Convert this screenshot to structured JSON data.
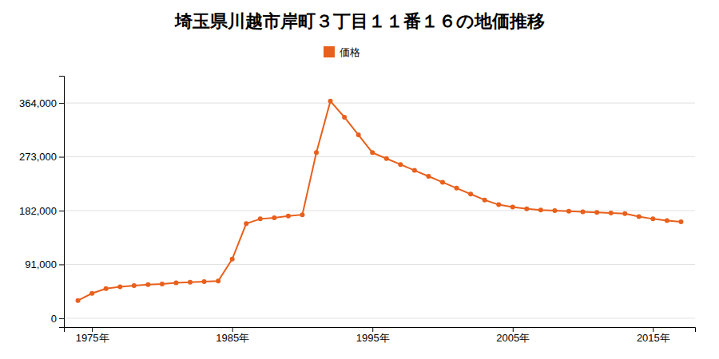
{
  "chart_data": {
    "type": "line",
    "title": "埼玉県川越市岸町３丁目１１番１６の地価推移",
    "x": [
      1974,
      1975,
      1976,
      1977,
      1978,
      1979,
      1980,
      1981,
      1982,
      1983,
      1984,
      1985,
      1986,
      1987,
      1988,
      1989,
      1990,
      1991,
      1992,
      1993,
      1994,
      1995,
      1996,
      1997,
      1998,
      1999,
      2000,
      2001,
      2002,
      2003,
      2004,
      2005,
      2006,
      2007,
      2008,
      2009,
      2010,
      2011,
      2012,
      2013,
      2014,
      2015,
      2016,
      2017
    ],
    "series": [
      {
        "name": "価格",
        "color": "#E8601C",
        "marker": "circle",
        "values": [
          30000,
          42000,
          50000,
          53000,
          55000,
          57000,
          58000,
          60000,
          61000,
          62000,
          63000,
          100000,
          160000,
          168000,
          170000,
          173000,
          175000,
          280000,
          367000,
          340000,
          310000,
          280000,
          270000,
          260000,
          250000,
          240000,
          230000,
          220000,
          210000,
          200000,
          192000,
          188000,
          185000,
          183000,
          182000,
          181000,
          180000,
          179000,
          178000,
          177000,
          172000,
          168000,
          165000,
          163000
        ]
      }
    ],
    "xlim": [
      1973,
      2018
    ],
    "xticks": [
      {
        "value": 1975,
        "label": "1975年"
      },
      {
        "value": 1985,
        "label": "1985年"
      },
      {
        "value": 1995,
        "label": "1995年"
      },
      {
        "value": 2005,
        "label": "2005年"
      },
      {
        "value": 2015,
        "label": "2015年"
      }
    ],
    "ylim": [
      -15000,
      410000
    ],
    "yticks": [
      0,
      {
        "value": 91000,
        "label": "91,000"
      },
      {
        "value": 182000,
        "label": "182,000"
      },
      {
        "value": 273000,
        "label": "273,000"
      },
      {
        "value": 364000,
        "label": "364,000"
      }
    ],
    "grid": true,
    "legend": "top"
  }
}
